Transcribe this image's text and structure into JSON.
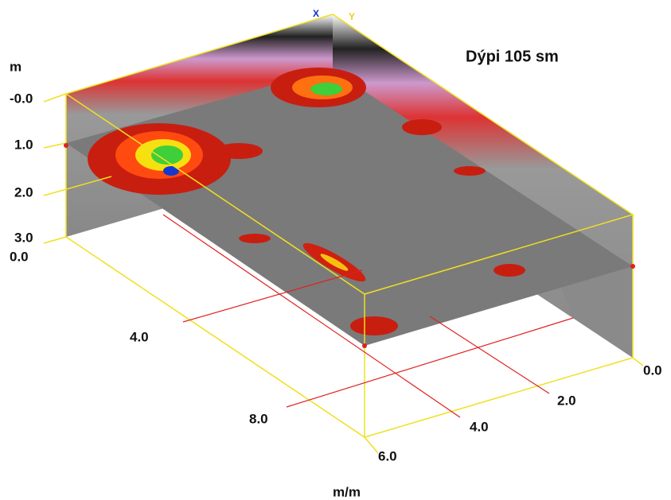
{
  "title": "Dýpi 105 sm",
  "depth_axis": {
    "unit": "m",
    "labels": [
      "-0.0",
      "1.0",
      "2.0",
      "3.0"
    ]
  },
  "length_axis": {
    "labels": [
      "0.0",
      "4.0",
      "8.0"
    ]
  },
  "width_axis": {
    "labels": [
      "0.0",
      "2.0",
      "4.0",
      "6.0"
    ]
  },
  "axis_unit": "m/m",
  "corner_labels": [
    "X",
    "Y"
  ]
}
